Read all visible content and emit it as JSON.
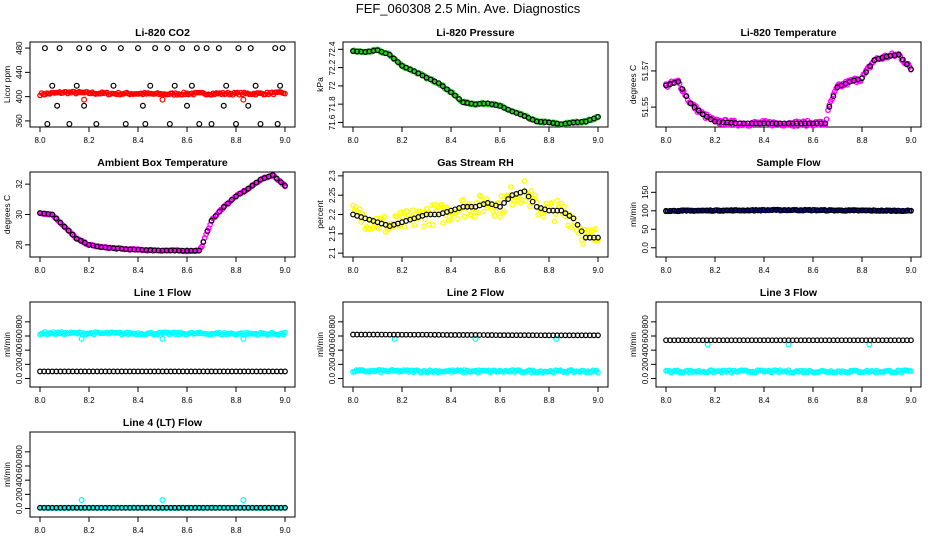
{
  "title": "FEF_060308  2.5 Min. Ave. Diagnostics",
  "colors": {
    "red": "#ff0000",
    "green": "#22cc22",
    "magenta": "#ff00ff",
    "yellow": "#ffff00",
    "navy": "#00008b",
    "cyan": "#00ffff",
    "black": "#000000"
  },
  "chart_data": [
    {
      "type": "scatter",
      "title": "Li-820 CO2",
      "ylabel": "Licor ppm",
      "xlim": [
        8.0,
        9.0
      ],
      "xticks": [
        8.0,
        8.2,
        8.4,
        8.6,
        8.8,
        9.0
      ],
      "ylim": [
        350,
        490
      ],
      "yticks": [
        360,
        400,
        440,
        480
      ],
      "series": [
        {
          "color": "red",
          "kind": "band",
          "x": [
            8.0,
            8.1,
            8.2,
            8.3,
            8.4,
            8.5,
            8.6,
            8.7,
            8.8,
            8.9,
            9.0
          ],
          "y": [
            404,
            407,
            406,
            405,
            405,
            404,
            405,
            405,
            405,
            405,
            406
          ],
          "spread": 2
        },
        {
          "color": "red",
          "kind": "points",
          "x": [
            8.18,
            8.5,
            8.83
          ],
          "y": [
            395,
            395,
            395
          ]
        },
        {
          "color": "black",
          "kind": "points",
          "x": [
            8.02,
            8.08,
            8.16,
            8.2,
            8.26,
            8.33,
            8.4,
            8.47,
            8.52,
            8.58,
            8.64,
            8.68,
            8.73,
            8.81,
            8.86,
            8.96,
            8.99,
            8.05,
            8.15,
            8.3,
            8.45,
            8.55,
            8.62,
            8.76,
            8.88,
            8.98,
            8.03,
            8.12,
            8.23,
            8.35,
            8.43,
            8.53,
            8.65,
            8.7,
            8.8,
            8.9,
            8.97,
            8.07,
            8.18,
            8.42,
            8.6,
            8.75,
            8.85
          ],
          "y": [
            480,
            480,
            480,
            480,
            480,
            480,
            480,
            480,
            480,
            480,
            480,
            480,
            480,
            480,
            480,
            480,
            480,
            418,
            418,
            418,
            418,
            418,
            418,
            418,
            418,
            418,
            355,
            355,
            355,
            355,
            355,
            355,
            355,
            355,
            355,
            355,
            355,
            385,
            385,
            385,
            385,
            385,
            385
          ]
        }
      ]
    },
    {
      "type": "scatter",
      "title": "Li-820 Pressure",
      "ylabel": "kPa",
      "xlim": [
        8.0,
        9.0
      ],
      "xticks": [
        8.0,
        8.2,
        8.4,
        8.6,
        8.8,
        9.0
      ],
      "ylim": [
        71.55,
        72.48
      ],
      "yticks": [
        71.6,
        71.8,
        72.0,
        72.2,
        72.4
      ],
      "series": [
        {
          "color": "green",
          "kind": "curve",
          "x": [
            8.0,
            8.05,
            8.1,
            8.15,
            8.2,
            8.25,
            8.3,
            8.35,
            8.4,
            8.45,
            8.5,
            8.55,
            8.6,
            8.65,
            8.7,
            8.75,
            8.8,
            8.85,
            8.9,
            8.95,
            9.0
          ],
          "y": [
            72.38,
            72.37,
            72.39,
            72.34,
            72.22,
            72.16,
            72.09,
            72.03,
            71.93,
            71.82,
            71.8,
            71.81,
            71.78,
            71.72,
            71.67,
            71.61,
            71.6,
            71.58,
            71.6,
            71.61,
            71.66
          ],
          "spread": 0.012
        },
        {
          "color": "black",
          "kind": "sample",
          "x": [
            8.0,
            8.05,
            8.1,
            8.15,
            8.2,
            8.25,
            8.3,
            8.35,
            8.4,
            8.45,
            8.5,
            8.55,
            8.6,
            8.65,
            8.7,
            8.75,
            8.8,
            8.85,
            8.9,
            8.95,
            9.0
          ],
          "y": [
            72.38,
            72.37,
            72.39,
            72.34,
            72.22,
            72.16,
            72.09,
            72.03,
            71.93,
            71.82,
            71.8,
            71.81,
            71.78,
            71.72,
            71.67,
            71.61,
            71.6,
            71.58,
            71.6,
            71.61,
            71.66
          ]
        }
      ]
    },
    {
      "type": "scatter",
      "title": "Li-820 Temperature",
      "ylabel": "degrees C",
      "xlim": [
        8.0,
        9.0
      ],
      "xticks": [
        8.0,
        8.2,
        8.4,
        8.6,
        8.8,
        9.0
      ],
      "ylim": [
        51.539,
        51.586
      ],
      "yticks": [
        51.55,
        51.57
      ],
      "series": [
        {
          "color": "magenta",
          "kind": "curve",
          "x": [
            8.0,
            8.05,
            8.1,
            8.15,
            8.2,
            8.3,
            8.4,
            8.5,
            8.6,
            8.65,
            8.67,
            8.7,
            8.75,
            8.8,
            8.85,
            8.9,
            8.95,
            9.0
          ],
          "y": [
            51.562,
            51.564,
            51.552,
            51.546,
            51.542,
            51.541,
            51.541,
            51.541,
            51.541,
            51.541,
            51.552,
            51.561,
            51.564,
            51.566,
            51.576,
            51.578,
            51.579,
            51.571
          ],
          "spread": 0.0015
        },
        {
          "color": "black",
          "kind": "sample",
          "x": [
            8.0,
            8.05,
            8.1,
            8.15,
            8.2,
            8.3,
            8.4,
            8.5,
            8.6,
            8.65,
            8.67,
            8.7,
            8.75,
            8.8,
            8.85,
            8.9,
            8.95,
            9.0
          ],
          "y": [
            51.562,
            51.564,
            51.552,
            51.546,
            51.542,
            51.541,
            51.541,
            51.541,
            51.541,
            51.541,
            51.552,
            51.561,
            51.564,
            51.566,
            51.576,
            51.578,
            51.579,
            51.571
          ]
        }
      ]
    },
    {
      "type": "scatter",
      "title": "Ambient Box Temperature",
      "ylabel": "degrees C",
      "xlim": [
        8.0,
        9.0
      ],
      "xticks": [
        8.0,
        8.2,
        8.4,
        8.6,
        8.8,
        9.0
      ],
      "ylim": [
        27.2,
        32.8
      ],
      "yticks": [
        28,
        30,
        32
      ],
      "series": [
        {
          "color": "magenta",
          "kind": "curve",
          "x": [
            8.0,
            8.05,
            8.1,
            8.15,
            8.2,
            8.25,
            8.3,
            8.35,
            8.4,
            8.45,
            8.5,
            8.55,
            8.6,
            8.65,
            8.66,
            8.7,
            8.75,
            8.8,
            8.85,
            8.9,
            8.95,
            9.0
          ],
          "y": [
            30.1,
            30.0,
            29.2,
            28.4,
            28.0,
            27.85,
            27.78,
            27.72,
            27.68,
            27.65,
            27.63,
            27.62,
            27.61,
            27.62,
            27.9,
            29.6,
            30.5,
            31.2,
            31.7,
            32.3,
            32.6,
            31.9
          ],
          "spread": 0.05
        },
        {
          "color": "black",
          "kind": "sample",
          "x": [
            8.0,
            8.05,
            8.1,
            8.15,
            8.2,
            8.25,
            8.3,
            8.35,
            8.4,
            8.45,
            8.5,
            8.55,
            8.6,
            8.65,
            8.66,
            8.7,
            8.75,
            8.8,
            8.85,
            8.9,
            8.95,
            9.0
          ],
          "y": [
            30.1,
            30.0,
            29.2,
            28.4,
            28.0,
            27.85,
            27.78,
            27.72,
            27.68,
            27.65,
            27.63,
            27.62,
            27.61,
            27.62,
            27.9,
            29.6,
            30.5,
            31.2,
            31.7,
            32.3,
            32.6,
            31.9
          ]
        }
      ]
    },
    {
      "type": "scatter",
      "title": "Gas Stream RH",
      "ylabel": "percent",
      "xlim": [
        8.0,
        9.0
      ],
      "xticks": [
        8.0,
        8.2,
        8.4,
        8.6,
        8.8,
        9.0
      ],
      "ylim": [
        2.09,
        2.31
      ],
      "yticks": [
        2.1,
        2.15,
        2.2,
        2.25,
        2.3
      ],
      "series": [
        {
          "color": "yellow",
          "kind": "curve",
          "x": [
            8.0,
            8.05,
            8.1,
            8.15,
            8.2,
            8.25,
            8.3,
            8.35,
            8.4,
            8.45,
            8.5,
            8.55,
            8.6,
            8.65,
            8.7,
            8.75,
            8.8,
            8.85,
            8.9,
            8.95,
            9.0
          ],
          "y": [
            2.2,
            2.19,
            2.18,
            2.17,
            2.18,
            2.19,
            2.2,
            2.2,
            2.21,
            2.22,
            2.22,
            2.23,
            2.22,
            2.25,
            2.26,
            2.22,
            2.21,
            2.21,
            2.19,
            2.14,
            2.14
          ],
          "spread": 0.028
        },
        {
          "color": "black",
          "kind": "sample",
          "x": [
            8.0,
            8.05,
            8.1,
            8.15,
            8.2,
            8.25,
            8.3,
            8.35,
            8.4,
            8.45,
            8.5,
            8.55,
            8.6,
            8.65,
            8.7,
            8.75,
            8.8,
            8.85,
            8.9,
            8.95,
            9.0
          ],
          "y": [
            2.2,
            2.19,
            2.18,
            2.17,
            2.18,
            2.19,
            2.2,
            2.2,
            2.21,
            2.22,
            2.22,
            2.23,
            2.22,
            2.25,
            2.26,
            2.22,
            2.21,
            2.21,
            2.19,
            2.14,
            2.14
          ]
        }
      ]
    },
    {
      "type": "scatter",
      "title": "Sample Flow",
      "ylabel": "ml/min",
      "xlim": [
        8.0,
        9.0
      ],
      "xticks": [
        8.0,
        8.2,
        8.4,
        8.6,
        8.8,
        9.0
      ],
      "ylim": [
        -25,
        205
      ],
      "yticks": [
        0,
        50,
        100,
        150
      ],
      "series": [
        {
          "color": "navy",
          "kind": "flat",
          "x": [
            8.0,
            8.5,
            9.0
          ],
          "y": [
            100,
            102,
            100
          ],
          "spread": 1.5
        },
        {
          "color": "black",
          "kind": "sample",
          "x": [
            8.0,
            8.1,
            8.2,
            8.3,
            8.4,
            8.5,
            8.6,
            8.7,
            8.8,
            8.9,
            9.0
          ],
          "y": [
            100,
            100,
            101,
            101,
            102,
            102,
            102,
            101,
            101,
            100,
            100
          ]
        }
      ]
    },
    {
      "type": "scatter",
      "title": "Line 1 Flow",
      "ylabel": "ml/min",
      "xlim": [
        8.0,
        9.0
      ],
      "xticks": [
        8.0,
        8.2,
        8.4,
        8.6,
        8.8,
        9.0
      ],
      "ylim": [
        -120,
        1080
      ],
      "yticks": [
        0,
        200,
        400,
        600,
        800
      ],
      "series": [
        {
          "color": "cyan",
          "kind": "flat",
          "x": [
            8.0,
            9.0
          ],
          "y": [
            640,
            630
          ],
          "spread": 18
        },
        {
          "color": "cyan",
          "kind": "points",
          "x": [
            8.17,
            8.5,
            8.83
          ],
          "y": [
            560,
            560,
            560
          ]
        },
        {
          "color": "black",
          "kind": "sample",
          "x": [
            8.0,
            8.1,
            8.2,
            8.3,
            8.4,
            8.5,
            8.6,
            8.7,
            8.8,
            8.9,
            9.0
          ],
          "y": [
            100,
            100,
            100,
            100,
            100,
            100,
            100,
            100,
            100,
            100,
            100
          ]
        }
      ]
    },
    {
      "type": "scatter",
      "title": "Line 2 Flow",
      "ylabel": "ml/min",
      "xlim": [
        8.0,
        9.0
      ],
      "xticks": [
        8.0,
        8.2,
        8.4,
        8.6,
        8.8,
        9.0
      ],
      "ylim": [
        -120,
        1080
      ],
      "yticks": [
        0,
        200,
        400,
        600,
        800
      ],
      "series": [
        {
          "color": "cyan",
          "kind": "flat",
          "x": [
            8.0,
            9.0
          ],
          "y": [
            105,
            100
          ],
          "spread": 18
        },
        {
          "color": "cyan",
          "kind": "points",
          "x": [
            8.17,
            8.5,
            8.83
          ],
          "y": [
            560,
            560,
            560
          ]
        },
        {
          "color": "black",
          "kind": "sample",
          "x": [
            8.0,
            8.1,
            8.2,
            8.3,
            8.4,
            8.5,
            8.6,
            8.7,
            8.8,
            8.9,
            9.0
          ],
          "y": [
            620,
            620,
            618,
            618,
            615,
            615,
            612,
            612,
            610,
            610,
            610
          ]
        }
      ]
    },
    {
      "type": "scatter",
      "title": "Line 3 Flow",
      "ylabel": "ml/min",
      "xlim": [
        8.0,
        9.0
      ],
      "xticks": [
        8.0,
        8.2,
        8.4,
        8.6,
        8.8,
        9.0
      ],
      "ylim": [
        -120,
        1080
      ],
      "yticks": [
        0,
        200,
        400,
        600,
        800
      ],
      "series": [
        {
          "color": "cyan",
          "kind": "flat",
          "x": [
            8.0,
            9.0
          ],
          "y": [
            100,
            100
          ],
          "spread": 18
        },
        {
          "color": "cyan",
          "kind": "points",
          "x": [
            8.17,
            8.5,
            8.83
          ],
          "y": [
            480,
            480,
            480
          ]
        },
        {
          "color": "black",
          "kind": "sample",
          "x": [
            8.0,
            8.1,
            8.2,
            8.3,
            8.4,
            8.5,
            8.6,
            8.7,
            8.8,
            8.9,
            9.0
          ],
          "y": [
            540,
            540,
            540,
            540,
            540,
            540,
            540,
            540,
            540,
            540,
            540
          ]
        }
      ]
    },
    {
      "type": "scatter",
      "title": "Line 4 (LT) Flow",
      "ylabel": "ml/min",
      "xlim": [
        8.0,
        9.0
      ],
      "xticks": [
        8.0,
        8.2,
        8.4,
        8.6,
        8.8,
        9.0
      ],
      "ylim": [
        -120,
        1080
      ],
      "yticks": [
        0,
        200,
        400,
        600,
        800
      ],
      "series": [
        {
          "color": "cyan",
          "kind": "flat",
          "x": [
            8.0,
            9.0
          ],
          "y": [
            10,
            10
          ],
          "spread": 4
        },
        {
          "color": "cyan",
          "kind": "points",
          "x": [
            8.17,
            8.5,
            8.83
          ],
          "y": [
            120,
            120,
            120
          ]
        },
        {
          "color": "black",
          "kind": "sample",
          "x": [
            8.0,
            8.1,
            8.2,
            8.3,
            8.4,
            8.5,
            8.6,
            8.7,
            8.8,
            8.9,
            9.0
          ],
          "y": [
            10,
            10,
            10,
            10,
            10,
            10,
            10,
            10,
            10,
            10,
            10
          ]
        }
      ]
    }
  ]
}
